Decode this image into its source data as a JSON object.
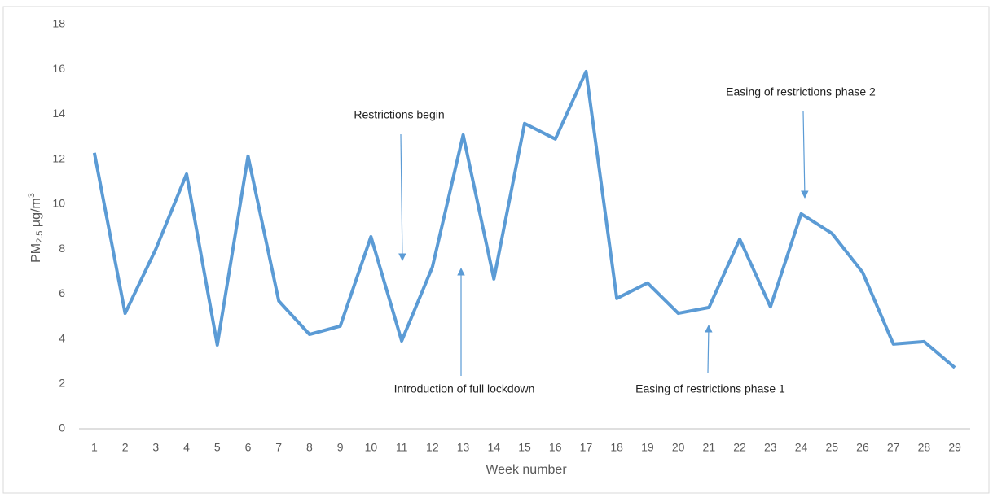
{
  "chart_data": {
    "type": "line",
    "ylabel": {
      "base": "PM",
      "sub": "2.5",
      "unit": " µg/m",
      "sup": "3"
    },
    "xlabel": "Week number",
    "categories": [
      "1",
      "2",
      "3",
      "4",
      "5",
      "6",
      "7",
      "8",
      "9",
      "10",
      "11",
      "12",
      "13",
      "14",
      "15",
      "16",
      "17",
      "18",
      "19",
      "20",
      "21",
      "22",
      "23",
      "24",
      "25",
      "26",
      "27",
      "28",
      "29"
    ],
    "series": [
      {
        "color": "#5b9bd5",
        "values": [
          12.28,
          5.14,
          8.0,
          11.34,
          3.73,
          12.14,
          5.69,
          4.2,
          4.57,
          8.55,
          3.91,
          7.2,
          13.08,
          6.67,
          13.59,
          12.9,
          15.9,
          5.8,
          6.49,
          5.14,
          5.4,
          8.44,
          5.43,
          9.57,
          8.7,
          6.96,
          3.77,
          3.88,
          2.72
        ]
      }
    ],
    "ylim": [
      0,
      18
    ],
    "yticks": [
      0,
      2,
      4,
      6,
      8,
      10,
      12,
      14,
      16,
      18
    ],
    "grid": false,
    "annotations": [
      "Restrictions begin",
      "Introduction of full lockdown",
      "Easing of restrictions phase 1",
      "Easing of restrictions phase 2"
    ]
  }
}
